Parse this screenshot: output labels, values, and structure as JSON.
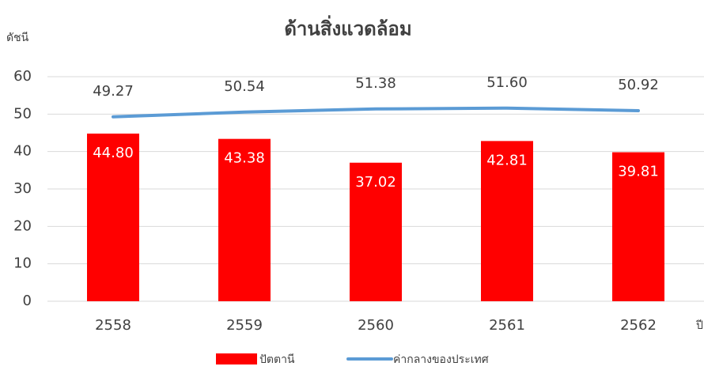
{
  "chart_data": {
    "type": "bar",
    "title": "ด้านสิ่งแวดล้อม",
    "y_label": "ดัชนี",
    "x_label": "ปี",
    "categories": [
      "2558",
      "2559",
      "2560",
      "2561",
      "2562"
    ],
    "series": [
      {
        "name": "ปัตตานี",
        "type": "bar",
        "color": "#ff0000",
        "values": [
          44.8,
          43.38,
          37.02,
          42.81,
          39.81
        ],
        "value_labels": [
          "44.80",
          "43.38",
          "37.02",
          "42.81",
          "39.81"
        ]
      },
      {
        "name": "ค่ากลางของประเทศ",
        "type": "line",
        "color": "#5b9bd5",
        "values": [
          49.27,
          50.54,
          51.38,
          51.6,
          50.92
        ],
        "value_labels": [
          "49.27",
          "50.54",
          "51.38",
          "51.60",
          "50.92"
        ]
      }
    ],
    "ylim": [
      0,
      60
    ],
    "yticks": [
      0,
      10,
      20,
      30,
      40,
      50,
      60
    ],
    "grid": true
  }
}
